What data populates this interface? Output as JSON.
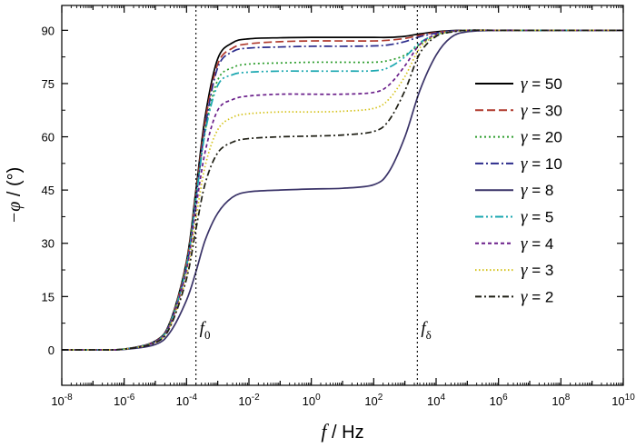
{
  "chart_data": {
    "type": "line",
    "title": "",
    "xlabel": "f / Hz",
    "ylabel": "−φ / (°)",
    "x_scale": "log",
    "xlim": [
      1e-08,
      10000000000.0
    ],
    "ylim": [
      -10,
      97
    ],
    "yticks": [
      0,
      15,
      30,
      45,
      60,
      75,
      90
    ],
    "ytick_labels": [
      "0",
      "15",
      "30",
      "45",
      "60",
      "75",
      "90"
    ],
    "xticks": [
      1e-08,
      1e-06,
      0.0001,
      0.01,
      1.0,
      100.0,
      10000.0,
      1000000.0,
      100000000.0,
      10000000000.0
    ],
    "xtick_labels": [
      {
        "base": "10",
        "exp": "-8"
      },
      {
        "base": "10",
        "exp": "-6"
      },
      {
        "base": "10",
        "exp": "-4"
      },
      {
        "base": "10",
        "exp": "-2"
      },
      {
        "base": "10",
        "exp": "0"
      },
      {
        "base": "10",
        "exp": "2"
      },
      {
        "base": "10",
        "exp": "4"
      },
      {
        "base": "10",
        "exp": "6"
      },
      {
        "base": "10",
        "exp": "8"
      },
      {
        "base": "10",
        "exp": "10"
      }
    ],
    "grid": false,
    "legend_position": "right",
    "vertical_lines": [
      {
        "x": 0.0002,
        "label": {
          "base": "f",
          "sub": "0"
        }
      },
      {
        "x": 2500,
        "label": {
          "base": "f",
          "sub": "δ"
        }
      }
    ],
    "x": [
      1e-08,
      1e-07,
      1e-06,
      1e-05,
      3e-05,
      0.0001,
      0.0002,
      0.0004,
      0.001,
      0.003,
      0.01,
      0.1,
      1.0,
      10.0,
      100.0,
      300.0,
      1000.0,
      3000.0,
      10000.0,
      30000.0,
      100000.0,
      1000000.0,
      10000000.0,
      100000000.0,
      1000000000.0,
      10000000000.0
    ],
    "series": [
      {
        "name": "γ = 50",
        "color": "#000000",
        "dash": "",
        "values": [
          0,
          0,
          0.2,
          2.5,
          8,
          25,
          45,
          66,
          82,
          86.5,
          87.6,
          87.9,
          88,
          88,
          88,
          88,
          88.3,
          89,
          89.6,
          89.9,
          90,
          90,
          90,
          90,
          90,
          90
        ]
      },
      {
        "name": "γ = 30",
        "color": "#b03a2e",
        "dash": "9,4",
        "values": [
          0,
          0,
          0.2,
          2.4,
          7.8,
          24.5,
          44,
          64.5,
          80.5,
          85,
          86.2,
          86.8,
          87,
          87,
          87,
          87.2,
          87.7,
          88.6,
          89.4,
          89.8,
          90,
          90,
          90,
          90,
          90,
          90
        ]
      },
      {
        "name": "γ = 20",
        "color": "#2e9e2e",
        "dash": "2,3",
        "values": [
          0,
          0,
          0.2,
          2.3,
          7.6,
          24,
          43,
          62,
          76,
          79.5,
          80.5,
          80.8,
          81,
          81,
          81,
          81.5,
          83,
          86,
          88.5,
          89.5,
          90,
          90,
          90,
          90,
          90,
          90
        ]
      },
      {
        "name": "γ = 10",
        "color": "#2c2c8c",
        "dash": "9,3,2,3",
        "values": [
          0,
          0,
          0.2,
          2.3,
          7.5,
          23.5,
          42.5,
          63,
          79.5,
          84,
          85,
          85.3,
          85.5,
          85.5,
          85.6,
          85.9,
          86.8,
          88.2,
          89.2,
          89.8,
          90,
          90,
          90,
          90,
          90,
          90
        ]
      },
      {
        "name": "γ = 8",
        "color": "#3a3368",
        "dash": "",
        "values": [
          0,
          0,
          0.1,
          1.5,
          5,
          14,
          22,
          31,
          38.5,
          43,
          44.5,
          45,
          45.3,
          45.5,
          46.5,
          50,
          60,
          73,
          83,
          88,
          89.6,
          90,
          90,
          90,
          90,
          90
        ]
      },
      {
        "name": "γ = 5",
        "color": "#1aa7b0",
        "dash": "9,3,2,3,2,3",
        "values": [
          0,
          0,
          0.2,
          2.3,
          7.5,
          23.5,
          42.5,
          61.5,
          74.5,
          77.5,
          78.2,
          78.5,
          78.5,
          78.5,
          78.6,
          79.5,
          82.5,
          86.5,
          88.8,
          89.6,
          90,
          90,
          90,
          90,
          90,
          90
        ]
      },
      {
        "name": "γ = 4",
        "color": "#6a1f8a",
        "dash": "4,3",
        "values": [
          0,
          0,
          0.2,
          2.2,
          7.2,
          22.5,
          40,
          56,
          67.5,
          70.5,
          71.5,
          72,
          72,
          72,
          72.5,
          74.5,
          80,
          86,
          88.8,
          89.6,
          90,
          90,
          90,
          90,
          90,
          90
        ]
      },
      {
        "name": "γ = 3",
        "color": "#d4c21a",
        "dash": "1.5,2.5",
        "values": [
          0,
          0,
          0.2,
          2.1,
          6.8,
          21,
          37,
          52,
          62,
          65.5,
          66.5,
          67,
          67,
          67.2,
          68,
          70.5,
          77,
          85,
          88.6,
          89.6,
          90,
          90,
          90,
          90,
          90,
          90
        ]
      },
      {
        "name": "γ = 2",
        "color": "#1e1e14",
        "dash": "7,3,2,3",
        "values": [
          0,
          0,
          0.2,
          2,
          6.5,
          20,
          34,
          47,
          55.5,
          58.5,
          59.5,
          60,
          60.2,
          60.5,
          61.5,
          64.5,
          73,
          83.5,
          88.3,
          89.5,
          90,
          90,
          90,
          90,
          90,
          90
        ]
      }
    ]
  }
}
